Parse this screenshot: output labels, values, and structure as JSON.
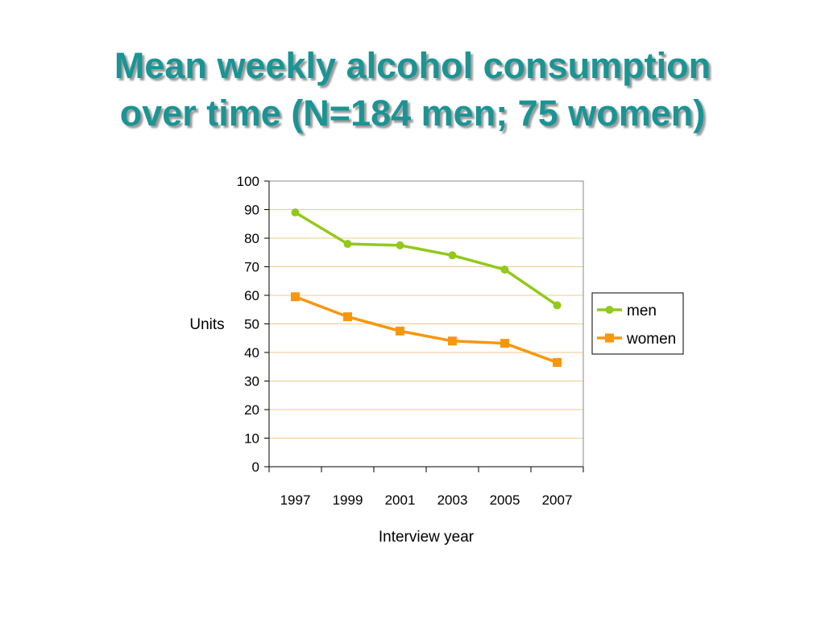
{
  "title": {
    "line1": "Mean weekly alcohol consumption",
    "line2": "over time (N=184 men; 75 women)"
  },
  "colors": {
    "title": "#1a9494",
    "men": "#92c91a",
    "women": "#f7970f",
    "grid": "#f0c890"
  },
  "chart_data": {
    "type": "line",
    "x": [
      "1997",
      "1999",
      "2001",
      "2003",
      "2005",
      "2007"
    ],
    "series": [
      {
        "name": "men",
        "values": [
          89,
          78,
          77.5,
          74,
          69,
          56.5
        ],
        "marker": "circle"
      },
      {
        "name": "women",
        "values": [
          59.5,
          52.5,
          47.5,
          44,
          43.2,
          36.5
        ],
        "marker": "square"
      }
    ],
    "xlabel": "Interview year",
    "ylabel": "Units",
    "ylim": [
      0,
      100
    ],
    "yticks": [
      0,
      10,
      20,
      30,
      40,
      50,
      60,
      70,
      80,
      90,
      100
    ],
    "grid": true,
    "legend": "right"
  }
}
